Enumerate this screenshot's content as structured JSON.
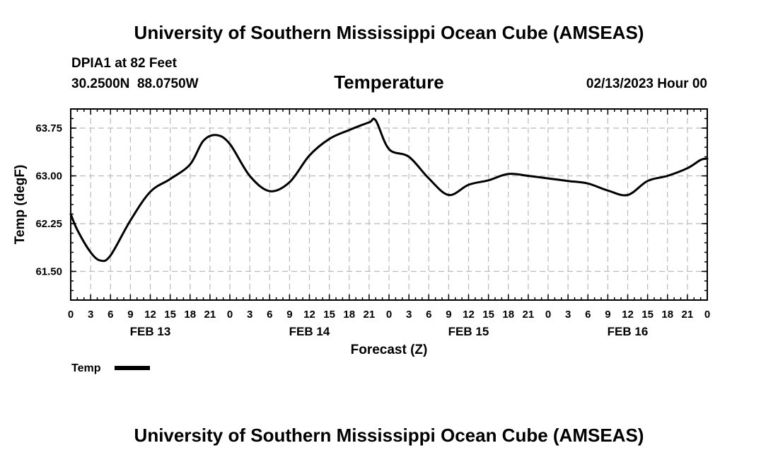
{
  "header": {
    "title": "University of Southern Mississippi Ocean Cube (AMSEAS)",
    "station": "DPIA1 at 82 Feet",
    "coords": "30.2500N  88.0750W",
    "variable": "Temperature",
    "run": "02/13/2023 Hour 00"
  },
  "footer": {
    "title": "University of Southern Mississippi Ocean Cube (AMSEAS)"
  },
  "chart_data": {
    "type": "line",
    "title": "Temperature",
    "xlabel": "Forecast (Z)",
    "ylabel": "Temp (degF)",
    "xlim": [
      0,
      96
    ],
    "ylim": [
      61.05,
      64.05
    ],
    "yticks": [
      61.5,
      62.25,
      63.0,
      63.75
    ],
    "ytick_labels": [
      "61.50",
      "62.25",
      "63.00",
      "63.75"
    ],
    "xtick_hours": [
      0,
      3,
      6,
      9,
      12,
      15,
      18,
      21,
      24,
      27,
      30,
      33,
      36,
      39,
      42,
      45,
      48,
      51,
      54,
      57,
      60,
      63,
      66,
      69,
      72,
      75,
      78,
      81,
      84,
      87,
      90,
      93,
      96
    ],
    "xtick_labels": [
      "0",
      "3",
      "6",
      "9",
      "12",
      "15",
      "18",
      "21",
      "0",
      "3",
      "6",
      "9",
      "12",
      "15",
      "18",
      "21",
      "0",
      "3",
      "6",
      "9",
      "12",
      "15",
      "18",
      "21",
      "0",
      "3",
      "6",
      "9",
      "12",
      "15",
      "18",
      "21",
      "0"
    ],
    "date_labels": [
      {
        "hour": 12,
        "label": "FEB 13"
      },
      {
        "hour": 36,
        "label": "FEB 14"
      },
      {
        "hour": 60,
        "label": "FEB 15"
      },
      {
        "hour": 84,
        "label": "FEB 16"
      }
    ],
    "legend": [
      {
        "name": "Temp",
        "color": "#000000"
      }
    ],
    "grid": true,
    "series": [
      {
        "name": "Temp",
        "x": [
          0,
          1,
          3,
          4.5,
          6,
          9,
          12,
          15,
          18,
          20,
          22,
          24,
          27,
          30,
          33,
          36,
          39,
          42,
          45,
          46,
          48,
          51,
          54,
          57,
          60,
          63,
          66,
          69,
          72,
          75,
          78,
          81,
          84,
          87,
          90,
          93,
          95,
          96
        ],
        "y": [
          62.4,
          62.15,
          61.8,
          61.67,
          61.75,
          62.3,
          62.75,
          62.95,
          63.18,
          63.55,
          63.64,
          63.5,
          63.0,
          62.76,
          62.9,
          63.32,
          63.58,
          63.72,
          63.84,
          63.87,
          63.42,
          63.3,
          62.96,
          62.7,
          62.86,
          62.93,
          63.03,
          63.0,
          62.96,
          62.92,
          62.88,
          62.77,
          62.7,
          62.92,
          63.0,
          63.12,
          63.25,
          63.27
        ]
      }
    ]
  }
}
